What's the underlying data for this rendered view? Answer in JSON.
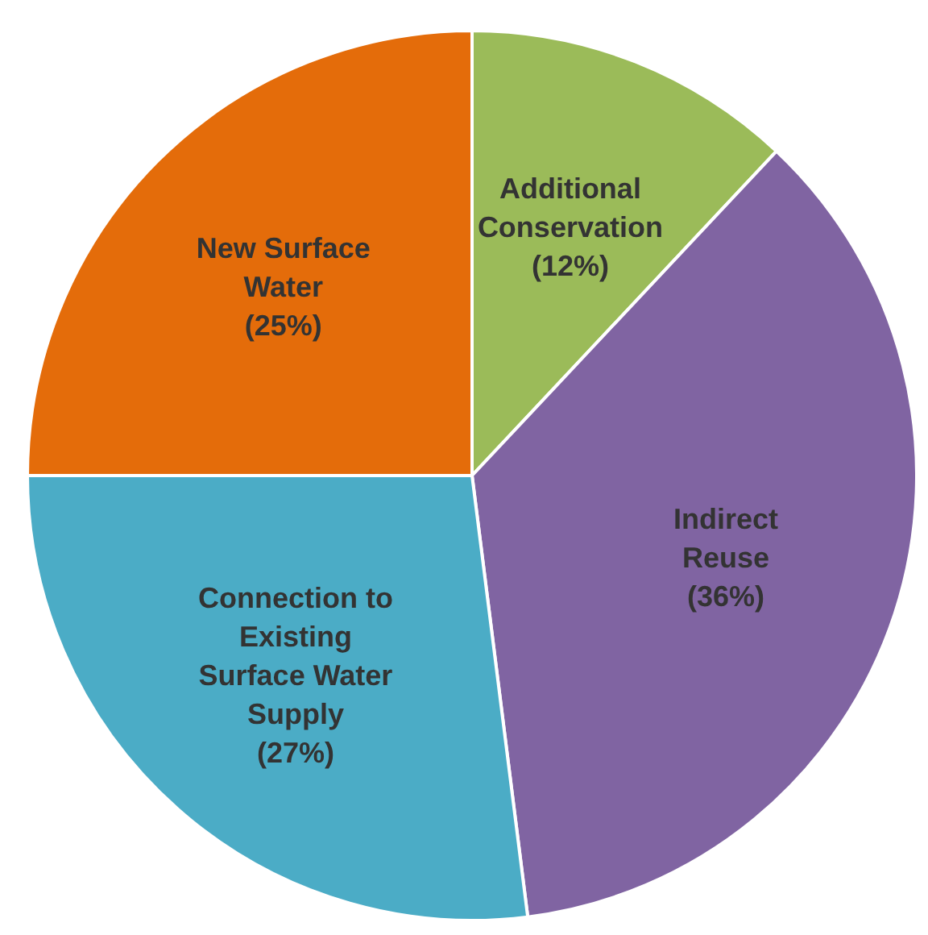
{
  "chart_data": {
    "type": "pie",
    "categories": [
      "Additional Conservation",
      "Indirect Reuse",
      "Connection to Existing Surface Water Supply",
      "New Surface Water"
    ],
    "values": [
      12,
      36,
      27,
      25
    ],
    "colors": [
      "#9bbb59",
      "#8064a2",
      "#4bacc6",
      "#e46c0a"
    ],
    "value_labels": [
      "(12%)",
      "(36%)",
      "(27%)",
      "(25%)"
    ],
    "legend": false
  }
}
